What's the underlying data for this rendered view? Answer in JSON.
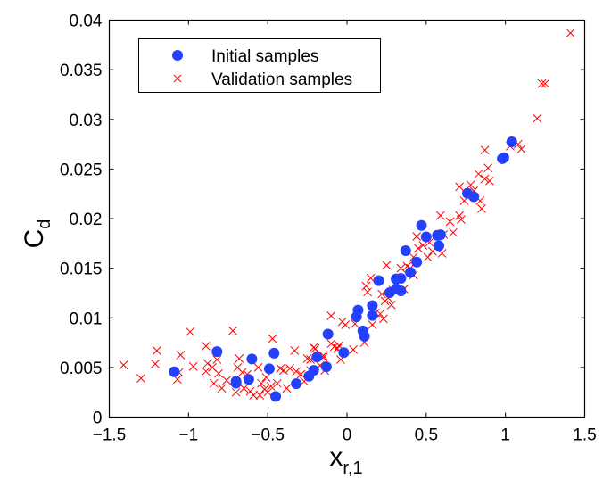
{
  "chart_data": {
    "type": "scatter",
    "xlabel": "x",
    "xlabel_sub": "r,1",
    "ylabel": "C",
    "ylabel_sub": "d",
    "xlim": [
      -1.5,
      1.5
    ],
    "ylim": [
      0,
      0.04
    ],
    "xticks": [
      -1.5,
      -1,
      -0.5,
      0,
      0.5,
      1,
      1.5
    ],
    "xtick_labels": [
      "−1.5",
      "−1",
      "−0.5",
      "0",
      "0.5",
      "1",
      "1.5"
    ],
    "yticks": [
      0,
      0.005,
      0.01,
      0.015,
      0.02,
      0.025,
      0.03,
      0.035,
      0.04
    ],
    "ytick_labels": [
      "0",
      "0.005",
      "0.01",
      "0.015",
      "0.02",
      "0.025",
      "0.03",
      "0.035",
      "0.04"
    ],
    "grid": false,
    "legend_placement": "top-left",
    "series": [
      {
        "name": "Initial samples",
        "marker": "circle",
        "color": "#2340ff",
        "points": [
          [
            -1.09,
            0.00456
          ],
          [
            -0.82,
            0.0066
          ],
          [
            -0.7,
            0.00342
          ],
          [
            -0.7,
            0.0036
          ],
          [
            -0.62,
            0.0038
          ],
          [
            -0.6,
            0.00585
          ],
          [
            -0.49,
            0.00486
          ],
          [
            -0.46,
            0.00644
          ],
          [
            -0.45,
            0.00208
          ],
          [
            -0.32,
            0.00336
          ],
          [
            -0.24,
            0.00411
          ],
          [
            -0.21,
            0.00471
          ],
          [
            -0.19,
            0.00605
          ],
          [
            -0.13,
            0.00507
          ],
          [
            -0.12,
            0.00836
          ],
          [
            -0.02,
            0.0065
          ],
          [
            0.07,
            0.01078
          ],
          [
            0.06,
            0.0101
          ],
          [
            0.1,
            0.00868
          ],
          [
            0.11,
            0.00815
          ],
          [
            0.16,
            0.01123
          ],
          [
            0.16,
            0.01024
          ],
          [
            0.2,
            0.01374
          ],
          [
            0.27,
            0.01254
          ],
          [
            0.31,
            0.01293
          ],
          [
            0.34,
            0.01272
          ],
          [
            0.34,
            0.01398
          ],
          [
            0.31,
            0.01392
          ],
          [
            0.37,
            0.01676
          ],
          [
            0.4,
            0.01457
          ],
          [
            0.44,
            0.01562
          ],
          [
            0.47,
            0.0193
          ],
          [
            0.5,
            0.01816
          ],
          [
            0.57,
            0.01831
          ],
          [
            0.59,
            0.01837
          ],
          [
            0.58,
            0.01726
          ],
          [
            0.76,
            0.02255
          ],
          [
            0.8,
            0.0222
          ],
          [
            0.98,
            0.02603
          ],
          [
            0.99,
            0.02614
          ],
          [
            1.04,
            0.02773
          ]
        ]
      },
      {
        "name": "Validation samples",
        "marker": "x",
        "color": "#ff0000",
        "points": [
          [
            -1.41,
            0.00525
          ],
          [
            -1.3,
            0.0039
          ],
          [
            -1.21,
            0.00536
          ],
          [
            -1.2,
            0.0067
          ],
          [
            -1.07,
            0.0038
          ],
          [
            -1.05,
            0.00626
          ],
          [
            -1.06,
            0.0045
          ],
          [
            -0.99,
            0.0086
          ],
          [
            -0.97,
            0.0051
          ],
          [
            -0.89,
            0.00716
          ],
          [
            -0.89,
            0.0046
          ],
          [
            -0.88,
            0.0054
          ],
          [
            -0.85,
            0.005
          ],
          [
            -0.84,
            0.0034
          ],
          [
            -0.82,
            0.0058
          ],
          [
            -0.81,
            0.0044
          ],
          [
            -0.79,
            0.0029
          ],
          [
            -0.76,
            0.0037
          ],
          [
            -0.72,
            0.0087
          ],
          [
            -0.7,
            0.0025
          ],
          [
            -0.68,
            0.0059
          ],
          [
            -0.69,
            0.005
          ],
          [
            -0.66,
            0.0045
          ],
          [
            -0.65,
            0.0029
          ],
          [
            -0.63,
            0.0043
          ],
          [
            -0.61,
            0.0026
          ],
          [
            -0.59,
            0.0022
          ],
          [
            -0.56,
            0.005
          ],
          [
            -0.55,
            0.0022
          ],
          [
            -0.54,
            0.0034
          ],
          [
            -0.52,
            0.0028
          ],
          [
            -0.51,
            0.004
          ],
          [
            -0.5,
            0.0025
          ],
          [
            -0.47,
            0.0079
          ],
          [
            -0.48,
            0.0031
          ],
          [
            -0.44,
            0.0034
          ],
          [
            -0.42,
            0.0049
          ],
          [
            -0.4,
            0.0047
          ],
          [
            -0.38,
            0.0029
          ],
          [
            -0.36,
            0.0049
          ],
          [
            -0.33,
            0.0067
          ],
          [
            -0.32,
            0.0046
          ],
          [
            -0.29,
            0.0043
          ],
          [
            -0.27,
            0.0036
          ],
          [
            -0.25,
            0.0059
          ],
          [
            -0.23,
            0.0047
          ],
          [
            -0.2,
            0.0069
          ],
          [
            -0.17,
            0.0052
          ],
          [
            -0.15,
            0.006
          ],
          [
            -0.14,
            0.0047
          ],
          [
            -0.1,
            0.0102
          ],
          [
            -0.1,
            0.0074
          ],
          [
            -0.08,
            0.0071
          ],
          [
            -0.06,
            0.0069
          ],
          [
            -0.23,
            0.0058
          ],
          [
            -0.21,
            0.007
          ],
          [
            -0.15,
            0.0062
          ],
          [
            -0.05,
            0.0072
          ],
          [
            -0.04,
            0.0058
          ],
          [
            -0.03,
            0.0096
          ],
          [
            -0.01,
            0.0093
          ],
          [
            0.04,
            0.0068
          ],
          [
            0.05,
            0.0094
          ],
          [
            0.11,
            0.0075
          ],
          [
            0.12,
            0.0132
          ],
          [
            0.13,
            0.0126
          ],
          [
            0.15,
            0.014
          ],
          [
            0.16,
            0.0093
          ],
          [
            0.18,
            0.0105
          ],
          [
            0.21,
            0.0104
          ],
          [
            0.23,
            0.0099
          ],
          [
            0.22,
            0.0124
          ],
          [
            0.25,
            0.0153
          ],
          [
            0.24,
            0.0117
          ],
          [
            0.26,
            0.012
          ],
          [
            0.28,
            0.0113
          ],
          [
            0.29,
            0.0128
          ],
          [
            0.34,
            0.015
          ],
          [
            0.36,
            0.0129
          ],
          [
            0.38,
            0.0152
          ],
          [
            0.4,
            0.015
          ],
          [
            0.42,
            0.0143
          ],
          [
            0.42,
            0.0161
          ],
          [
            0.44,
            0.0182
          ],
          [
            0.45,
            0.017
          ],
          [
            0.48,
            0.0173
          ],
          [
            0.51,
            0.0161
          ],
          [
            0.52,
            0.0176
          ],
          [
            0.54,
            0.0167
          ],
          [
            0.59,
            0.0203
          ],
          [
            0.6,
            0.0165
          ],
          [
            0.61,
            0.0184
          ],
          [
            0.65,
            0.0197
          ],
          [
            0.67,
            0.0186
          ],
          [
            0.71,
            0.0232
          ],
          [
            0.71,
            0.0203
          ],
          [
            0.72,
            0.0199
          ],
          [
            0.74,
            0.0218
          ],
          [
            0.78,
            0.0234
          ],
          [
            0.8,
            0.0228
          ],
          [
            0.83,
            0.0245
          ],
          [
            0.84,
            0.0218
          ],
          [
            0.85,
            0.021
          ],
          [
            0.87,
            0.0269
          ],
          [
            0.87,
            0.024
          ],
          [
            0.89,
            0.0251
          ],
          [
            0.9,
            0.0238
          ],
          [
            1.03,
            0.0273
          ],
          [
            1.08,
            0.0275
          ],
          [
            1.1,
            0.027
          ],
          [
            1.2,
            0.0301
          ],
          [
            1.23,
            0.0336
          ],
          [
            1.25,
            0.0336
          ],
          [
            1.41,
            0.0387
          ]
        ]
      }
    ]
  }
}
